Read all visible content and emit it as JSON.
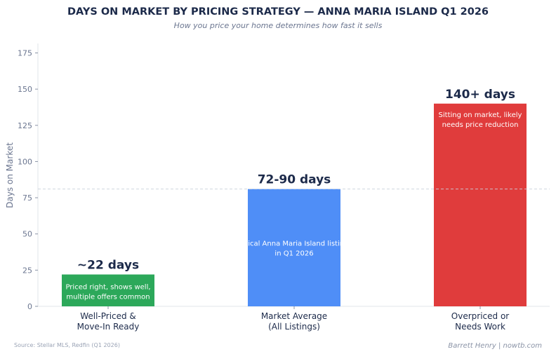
{
  "chart_data": {
    "type": "bar",
    "title": "DAYS ON MARKET BY PRICING STRATEGY — ANNA MARIA ISLAND Q1 2026",
    "subtitle": "How you price your home determines how fast it sells",
    "ylabel": "Days on Market",
    "xlabel": "",
    "ylim": [
      0,
      182
    ],
    "yticks": [
      0,
      25,
      50,
      75,
      100,
      125,
      150,
      175
    ],
    "categories": [
      [
        "Well-Priced &",
        "Move-In Ready"
      ],
      [
        "Market Average",
        "(All Listings)"
      ],
      [
        "Overpriced or",
        "Needs Work"
      ]
    ],
    "values": [
      22,
      81,
      140
    ],
    "colors": [
      "#2ca85a",
      "#4f8ef7",
      "#e03c3c"
    ],
    "data_labels": [
      "~22 days",
      "72-90 days",
      "140+ days"
    ],
    "bar_notes": [
      [
        "Priced right, shows well,",
        "multiple offers common"
      ],
      [
        "Typical Anna Maria Island listings",
        "in Q1 2026"
      ],
      [
        "Sitting on market, likely",
        "needs price reduction"
      ]
    ],
    "reference_line": 81,
    "grid": false,
    "source": "Source: Stellar MLS, Redfin (Q1 2026)",
    "credit": "Barrett Henry | nowtb.com"
  }
}
